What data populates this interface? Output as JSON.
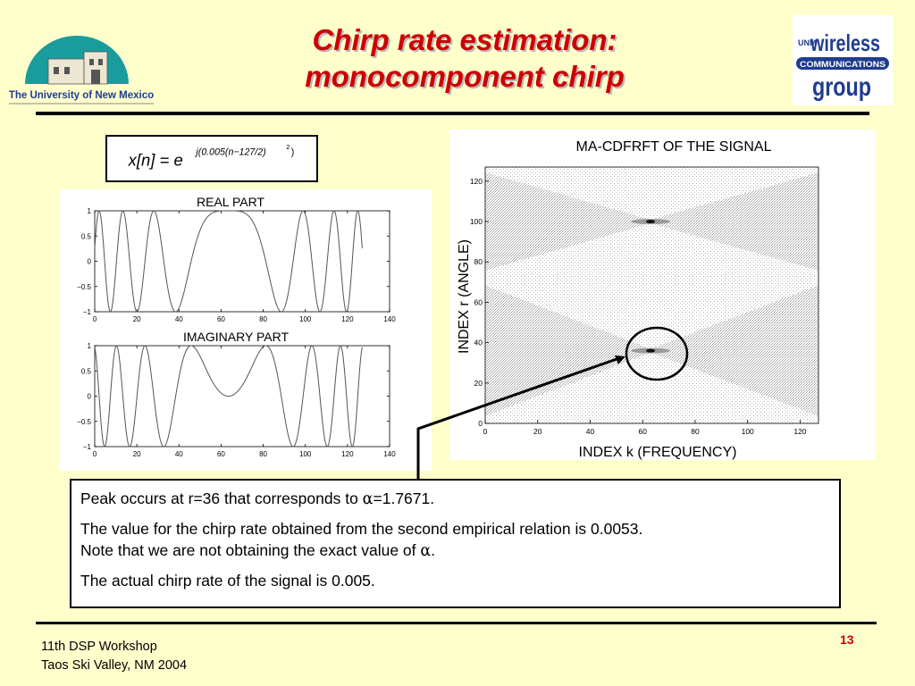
{
  "logos": {
    "left_text": "The University of New Mexico",
    "right_lines": [
      "UNM",
      "wireless",
      "COMMUNICATIONS",
      "group"
    ]
  },
  "title": {
    "line1": "Chirp rate estimation:",
    "line2": "monocomponent chirp"
  },
  "equation": {
    "lhs": "x[n] = e",
    "exponent": "j(0.005(n−127/2)",
    "exp_power": "2",
    "exp_close": ")"
  },
  "chart_data": [
    {
      "type": "line",
      "title": "REAL PART",
      "xlim": [
        0,
        140
      ],
      "ylim": [
        -1,
        1
      ],
      "xticks": [
        "0",
        "20",
        "40",
        "60",
        "80",
        "100",
        "120",
        "140"
      ],
      "yticks": [
        "1",
        "0.5",
        "0",
        "−0.5",
        "−1"
      ],
      "series": [
        {
          "function": "cos(0.005*(n-63.5)^2)",
          "x_range": [
            0,
            127
          ]
        }
      ]
    },
    {
      "type": "line",
      "title": "IMAGINARY PART",
      "xlim": [
        0,
        140
      ],
      "ylim": [
        -1,
        1
      ],
      "xticks": [
        "0",
        "20",
        "40",
        "60",
        "80",
        "100",
        "120",
        "140"
      ],
      "yticks": [
        "1",
        "0.5",
        "0",
        "−0.5",
        "−1"
      ],
      "series": [
        {
          "function": "sin(0.005*(n-63.5)^2)",
          "x_range": [
            0,
            127
          ]
        }
      ]
    },
    {
      "type": "heatmap",
      "title": "MA-CDFRFT OF THE SIGNAL",
      "xlabel": "INDEX k (FREQUENCY)",
      "ylabel": "INDEX r (ANGLE)",
      "xlim": [
        0,
        127
      ],
      "ylim": [
        0,
        127
      ],
      "xticks": [
        "0",
        "20",
        "40",
        "60",
        "80",
        "100",
        "120"
      ],
      "yticks": [
        "0",
        "20",
        "40",
        "60",
        "80",
        "100",
        "120"
      ],
      "peaks": [
        {
          "k": 63,
          "r": 36
        },
        {
          "k": 63,
          "r": 100
        }
      ]
    }
  ],
  "text_box": {
    "p1_before": "Peak occurs at r=36 that corresponds to ",
    "p1_alpha": "α",
    "p1_after": "=1.7671.",
    "p2_line1": "The value for the chirp rate obtained from the second empirical relation is 0.0053.",
    "p2_line2_before": "Note that we are not obtaining the exact value of ",
    "p2_alpha": "α",
    "p2_line2_after": ".",
    "p3": "The actual chirp rate of the signal is 0.005."
  },
  "footer": {
    "line1": "11th DSP Workshop",
    "line2": "Taos Ski Valley, NM 2004",
    "page_number": "13"
  },
  "colors": {
    "background": "#ffffcc",
    "title": "#cc0000",
    "logo_teal": "#1a9c9c",
    "logo_blue": "#1f3c8f"
  }
}
